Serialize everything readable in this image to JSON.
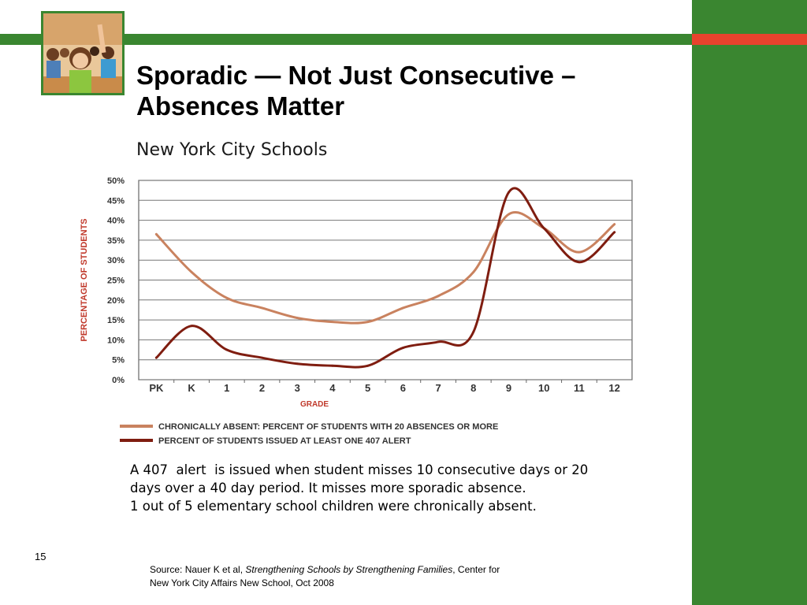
{
  "slide": {
    "title_line1": "Sporadic — Not Just Consecutive –",
    "title_line2": "Absences Matter",
    "subtitle": "New York City Schools",
    "body": [
      "A 407  alert  is issued when student misses 10 consecutive days or 20",
      "days over a 40 day period. It misses more sporadic absence.",
      "1 out of 5 elementary school children were chronically absent."
    ],
    "slide_number": "15",
    "source": {
      "prefix": "Source: Nauer K et al, ",
      "title": "Strengthening Schools by Strengthening Families",
      "suffix": ", Center for",
      "line2": "New York City Affairs New School, Oct 2008"
    },
    "colors": {
      "green": "#3a8630",
      "accent": "#e8432d",
      "series_light": "#c9825f",
      "series_dark": "#7f1d10",
      "axis_label": "#c0392b"
    },
    "photo_icon": "classroom-students-photo"
  },
  "chart_data": {
    "type": "line",
    "title": "",
    "xlabel": "GRADE",
    "ylabel": "PERCENTAGE OF STUDENTS",
    "categories": [
      "PK",
      "K",
      "1",
      "2",
      "3",
      "4",
      "5",
      "6",
      "7",
      "8",
      "9",
      "10",
      "11",
      "12"
    ],
    "ylim": [
      0,
      50
    ],
    "yticks": [
      "0%",
      "5%",
      "10%",
      "15%",
      "20%",
      "25%",
      "30%",
      "35%",
      "40%",
      "45%",
      "50%"
    ],
    "grid": true,
    "legend_position": "bottom",
    "series": [
      {
        "name": "CHRONICALLY ABSENT: PERCENT OF STUDENTS WITH 20 ABSENCES OR MORE",
        "color": "#c9825f",
        "values": [
          36.5,
          27,
          20.5,
          18,
          15.5,
          14.5,
          14.5,
          18,
          21,
          27,
          41.5,
          38,
          32,
          39
        ]
      },
      {
        "name": "PERCENT OF STUDENTS ISSUED AT LEAST ONE 407 ALERT",
        "color": "#7f1d10",
        "values": [
          5.5,
          13.5,
          7.5,
          5.5,
          4,
          3.5,
          3.5,
          8,
          9.5,
          12,
          47,
          38,
          29.5,
          37
        ]
      }
    ]
  }
}
